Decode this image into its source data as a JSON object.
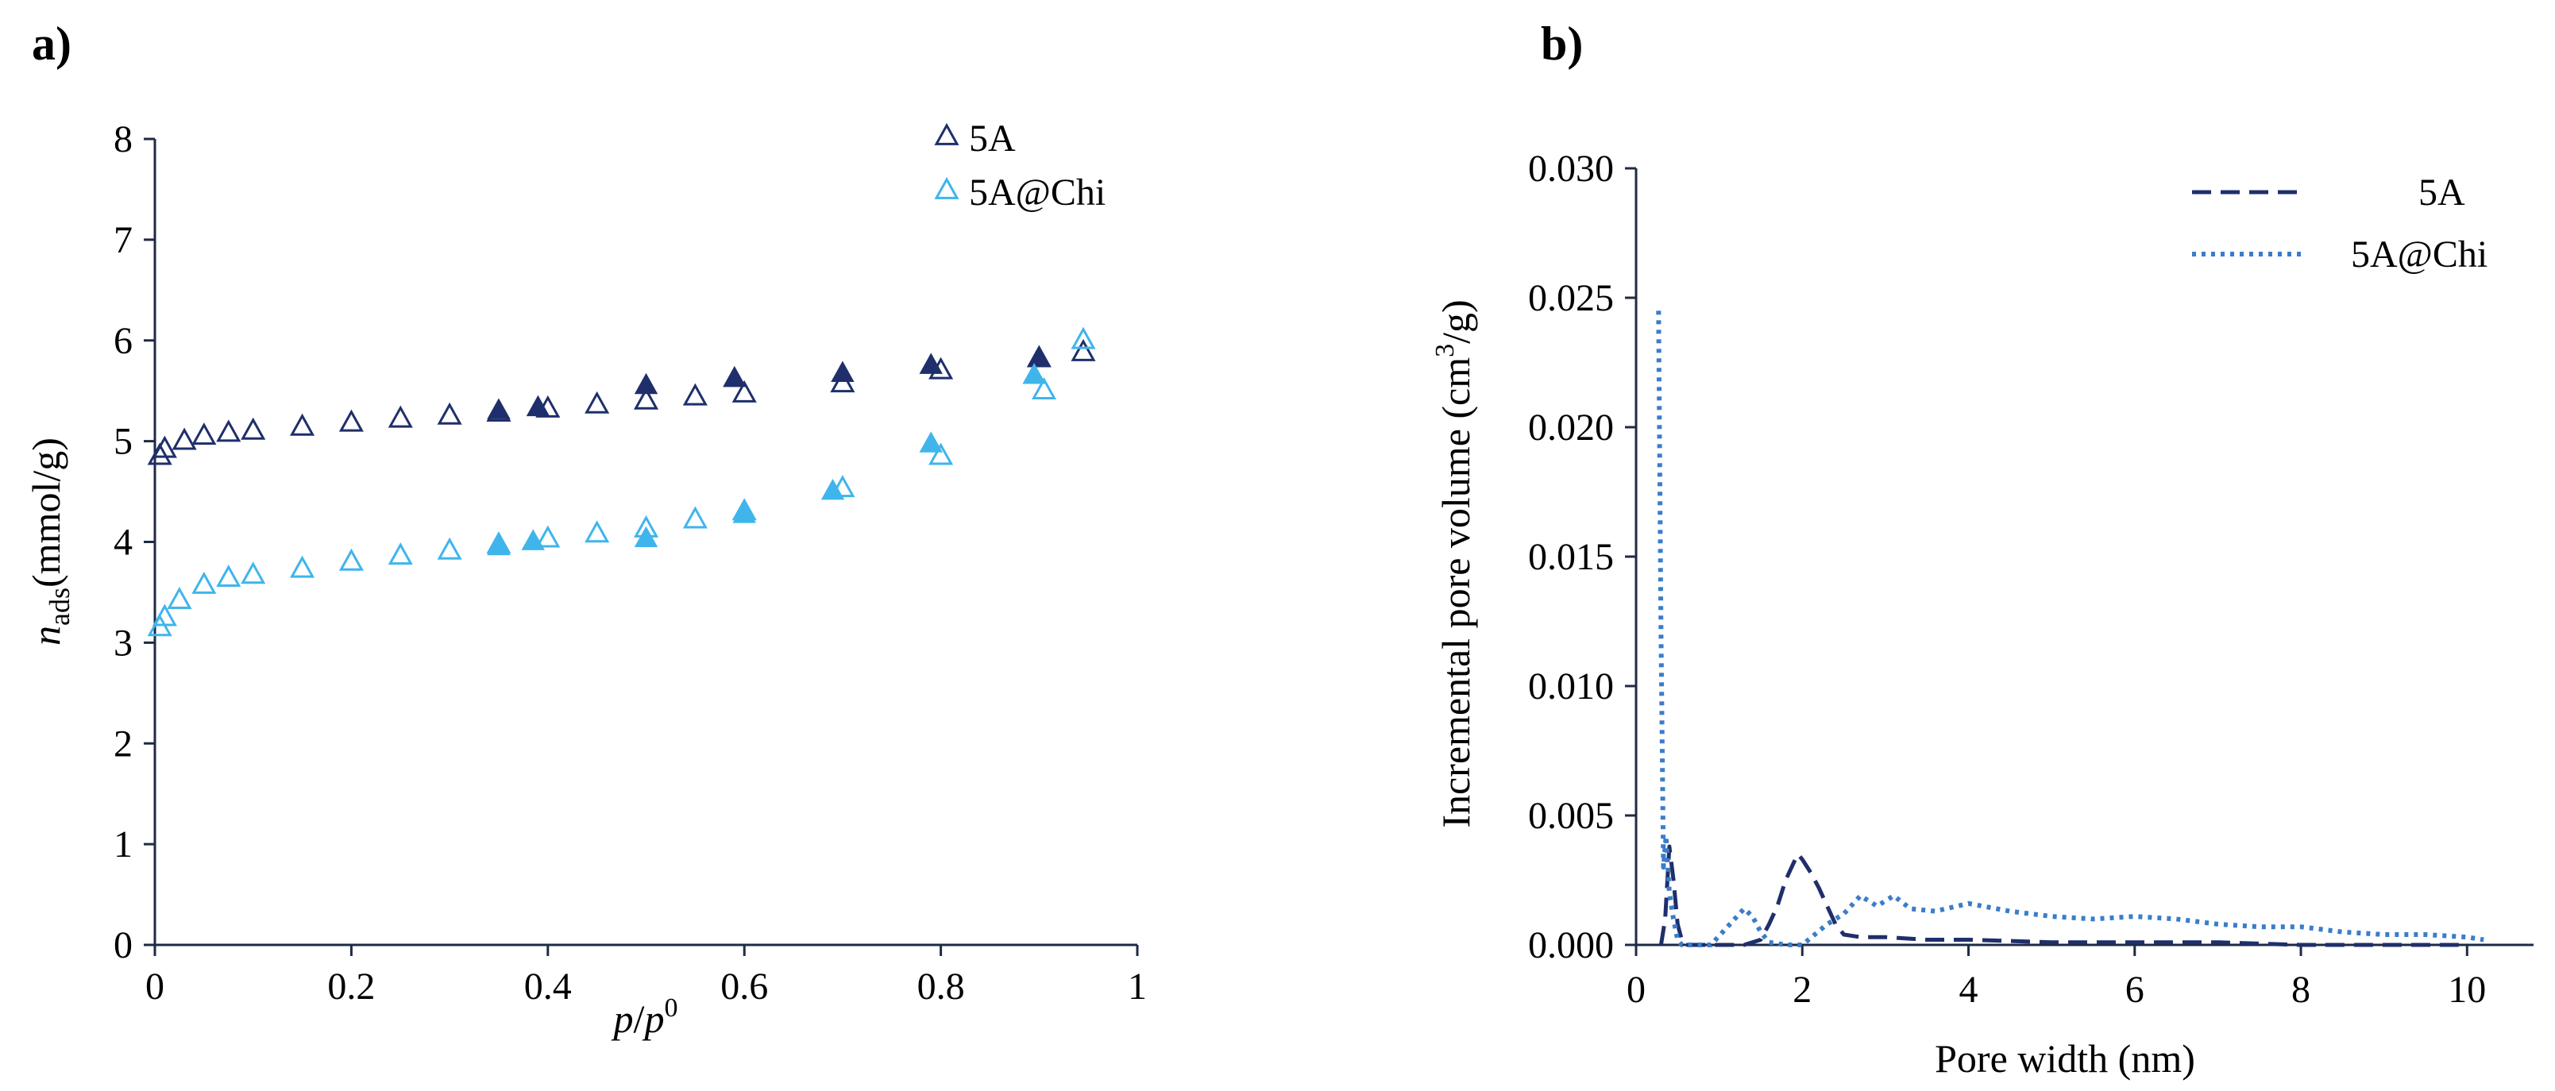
{
  "chart_data": [
    {
      "panel": "a)",
      "type": "scatter",
      "xlabel": "p/p0",
      "xlabel_parts": {
        "p": "p",
        "slash": "/",
        "p0": "p",
        "sup": "0"
      },
      "ylabel": "nads(mmol/g)",
      "ylabel_parts": {
        "n": "n",
        "sub": "ads",
        "unit": "(mmol/g)"
      },
      "xlim": [
        0,
        1
      ],
      "ylim": [
        0,
        8
      ],
      "xticks": [
        "0",
        "0.2",
        "0.4",
        "0.6",
        "0.8",
        "1"
      ],
      "xtick_values": [
        0,
        0.2,
        0.4,
        0.6,
        0.8,
        1
      ],
      "yticks": [
        "0",
        "1",
        "2",
        "3",
        "4",
        "5",
        "6",
        "7",
        "8"
      ],
      "ytick_values": [
        0,
        1,
        2,
        3,
        4,
        5,
        6,
        7,
        8
      ],
      "legend_position": "top-right",
      "series": [
        {
          "name": "5A",
          "color": "#1f2f6b",
          "adsorption": {
            "x": [
              0.005,
              0.01,
              0.03,
              0.05,
              0.075,
              0.1,
              0.15,
              0.2,
              0.25,
              0.3,
              0.35,
              0.4,
              0.45,
              0.5,
              0.55,
              0.6,
              0.7,
              0.8,
              0.9,
              0.945
            ],
            "y": [
              4.85,
              4.92,
              5.0,
              5.05,
              5.08,
              5.1,
              5.14,
              5.18,
              5.22,
              5.25,
              5.28,
              5.32,
              5.36,
              5.4,
              5.44,
              5.47,
              5.57,
              5.7,
              5.82,
              5.88
            ]
          },
          "desorption": {
            "x": [
              0.9,
              0.79,
              0.7,
              0.59,
              0.5,
              0.39,
              0.35
            ],
            "y": [
              5.82,
              5.75,
              5.67,
              5.62,
              5.55,
              5.33,
              5.3
            ]
          }
        },
        {
          "name": "5A@Chi",
          "color": "#3fb5ec",
          "adsorption": {
            "x": [
              0.005,
              0.01,
              0.025,
              0.05,
              0.075,
              0.1,
              0.15,
              0.2,
              0.25,
              0.3,
              0.35,
              0.4,
              0.45,
              0.5,
              0.55,
              0.6,
              0.7,
              0.8,
              0.905,
              0.945
            ],
            "y": [
              3.15,
              3.25,
              3.42,
              3.57,
              3.64,
              3.67,
              3.73,
              3.8,
              3.86,
              3.91,
              3.97,
              4.03,
              4.08,
              4.13,
              4.22,
              4.3,
              4.53,
              4.85,
              5.5,
              6.0
            ]
          },
          "desorption": {
            "x": [
              0.895,
              0.79,
              0.69,
              0.6,
              0.5,
              0.385,
              0.35
            ],
            "y": [
              5.65,
              4.97,
              4.5,
              4.27,
              4.03,
              4.0,
              3.95
            ]
          }
        }
      ]
    },
    {
      "panel": "b)",
      "type": "line",
      "xlabel": "Pore width (nm)",
      "ylabel": "Incremental pore volume (cm3/g)",
      "ylabel_parts": {
        "main": "Incremental pore volume (cm",
        "sup": "3",
        "end": "/g)"
      },
      "xlim": [
        0,
        10.8
      ],
      "ylim": [
        0,
        0.03
      ],
      "xticks": [
        "0",
        "2",
        "4",
        "6",
        "8",
        "10"
      ],
      "xtick_values": [
        0,
        2,
        4,
        6,
        8,
        10
      ],
      "yticks": [
        "0.000",
        "0.005",
        "0.010",
        "0.015",
        "0.020",
        "0.025",
        "0.030"
      ],
      "ytick_values": [
        0,
        0.005,
        0.01,
        0.015,
        0.02,
        0.025,
        0.03
      ],
      "legend_position": "top-right",
      "series": [
        {
          "name": "5A",
          "color": "#1f2f6b",
          "style": "dashed",
          "x": [
            0.3,
            0.35,
            0.4,
            0.45,
            0.5,
            0.55,
            0.6,
            0.7,
            1.0,
            1.3,
            1.5,
            1.6,
            1.7,
            1.8,
            1.9,
            1.95,
            2.0,
            2.1,
            2.2,
            2.3,
            2.4,
            2.5,
            2.7,
            3.0,
            3.5,
            4.0,
            5.0,
            6.0,
            7.0,
            8.0,
            9.0,
            9.9
          ],
          "y": [
            0,
            0.001,
            0.0038,
            0.0025,
            0.0008,
            0.0002,
            0,
            0,
            0,
            0,
            0.0002,
            0.0008,
            0.0015,
            0.0025,
            0.0032,
            0.0035,
            0.0033,
            0.0028,
            0.0022,
            0.0015,
            0.0008,
            0.0004,
            0.0003,
            0.0003,
            0.0002,
            0.0002,
            0.0001,
            0.0001,
            0.0001,
            0.0,
            0.0,
            0.0
          ]
        },
        {
          "name": "5A@Chi",
          "color": "#3a7dc9",
          "style": "dotted",
          "x": [
            0.27,
            0.3,
            0.33,
            0.36,
            0.4,
            0.45,
            0.5,
            0.55,
            0.6,
            0.7,
            0.9,
            1.1,
            1.3,
            1.4,
            1.5,
            1.6,
            1.8,
            2.0,
            2.3,
            2.5,
            2.7,
            2.9,
            3.1,
            3.3,
            3.6,
            4.0,
            4.5,
            5.0,
            5.5,
            6.0,
            6.5,
            7.0,
            7.5,
            8.0,
            8.5,
            9.0,
            9.5,
            10.0,
            10.2
          ],
          "y": [
            0.0245,
            0.012,
            0.003,
            0.0042,
            0.002,
            0.001,
            0.0002,
            0,
            0,
            0,
            0,
            0.0007,
            0.0014,
            0.0011,
            0.0005,
            0.0001,
            0,
            0,
            0.0008,
            0.0012,
            0.0019,
            0.0015,
            0.0019,
            0.0014,
            0.0013,
            0.0016,
            0.0013,
            0.0011,
            0.001,
            0.0011,
            0.001,
            0.0008,
            0.0007,
            0.0007,
            0.0005,
            0.0004,
            0.0004,
            0.0003,
            0.0002
          ]
        }
      ]
    }
  ]
}
